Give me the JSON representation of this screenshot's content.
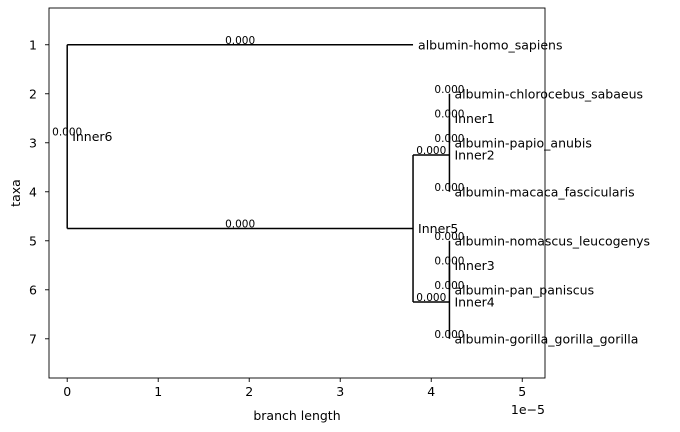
{
  "chart_data": {
    "type": "phylogenetic-tree",
    "xlabel": "branch length",
    "ylabel": "taxa",
    "x_offset_label": "1e−5",
    "x_scale_factor": 1e-05,
    "xlim": [
      -0.2,
      5.25
    ],
    "ylim": [
      7.8,
      0.25
    ],
    "x_ticks": [
      0,
      1,
      2,
      3,
      4,
      5
    ],
    "x_tick_labels": [
      "0",
      "1",
      "2",
      "3",
      "4",
      "5"
    ],
    "y_ticks": [
      1,
      2,
      3,
      4,
      5,
      6,
      7
    ],
    "y_tick_labels": [
      "1",
      "2",
      "3",
      "4",
      "5",
      "6",
      "7"
    ],
    "nodes": [
      {
        "name": "Inner6",
        "x": 0.0,
        "y": 2.875,
        "branch_label": "0.000",
        "children": [
          "albumin-homo_sapiens",
          "Inner5"
        ]
      },
      {
        "name": "albumin-homo_sapiens",
        "x": 3.8,
        "y": 1.0,
        "branch_label": "0.000",
        "children": []
      },
      {
        "name": "Inner5",
        "x": 3.8,
        "y": 4.75,
        "branch_label": "0.000",
        "children": [
          "Inner2",
          "Inner4"
        ]
      },
      {
        "name": "Inner2",
        "x": 4.2,
        "y": 3.25,
        "branch_label": "0.000",
        "children": [
          "Inner1",
          "albumin-macaca_fascicularis"
        ]
      },
      {
        "name": "Inner1",
        "x": 4.2,
        "y": 2.5,
        "branch_label": "0.000",
        "children": [
          "albumin-chlorocebus_sabaeus",
          "albumin-papio_anubis"
        ]
      },
      {
        "name": "albumin-chlorocebus_sabaeus",
        "x": 4.2,
        "y": 2.0,
        "branch_label": "0.000",
        "children": []
      },
      {
        "name": "albumin-papio_anubis",
        "x": 4.2,
        "y": 3.0,
        "branch_label": "0.000",
        "children": []
      },
      {
        "name": "albumin-macaca_fascicularis",
        "x": 4.2,
        "y": 4.0,
        "branch_label": "0.000",
        "children": []
      },
      {
        "name": "Inner4",
        "x": 4.2,
        "y": 6.25,
        "branch_label": "0.000",
        "children": [
          "Inner3",
          "albumin-gorilla_gorilla_gorilla"
        ]
      },
      {
        "name": "Inner3",
        "x": 4.2,
        "y": 5.5,
        "branch_label": "0.000",
        "children": [
          "albumin-nomascus_leucogenys",
          "albumin-pan_paniscus"
        ]
      },
      {
        "name": "albumin-nomascus_leucogenys",
        "x": 4.2,
        "y": 5.0,
        "branch_label": "0.000",
        "children": []
      },
      {
        "name": "albumin-pan_paniscus",
        "x": 4.2,
        "y": 6.0,
        "branch_label": "0.000",
        "children": []
      },
      {
        "name": "albumin-gorilla_gorilla_gorilla",
        "x": 4.2,
        "y": 7.0,
        "branch_label": "0.000",
        "children": []
      }
    ],
    "colors": {
      "line": "#000000",
      "background": "#ffffff"
    }
  }
}
